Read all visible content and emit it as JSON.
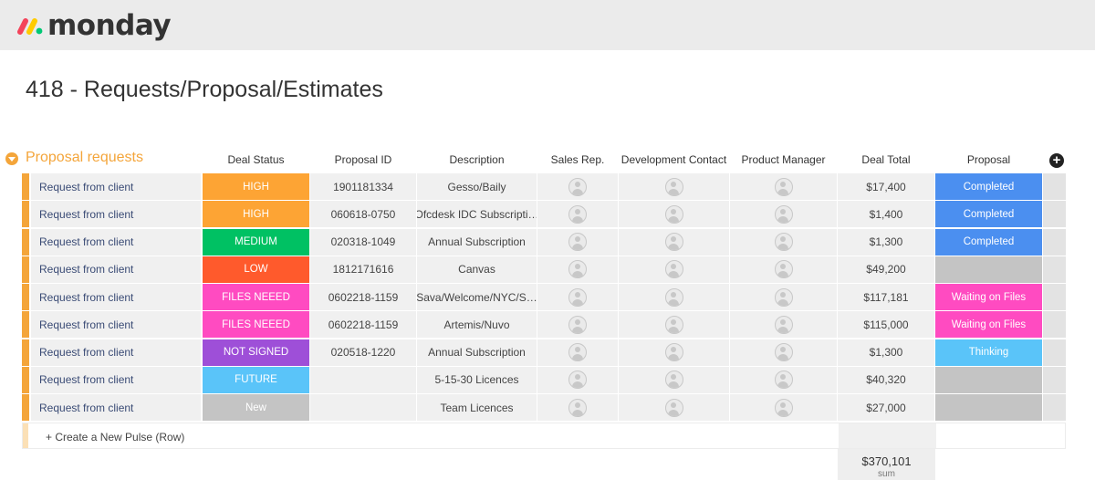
{
  "app": {
    "name": "monday",
    "logo_colors": [
      "#f4435a",
      "#ffcb00",
      "#00c875"
    ]
  },
  "board": {
    "title": "418 - Requests/Proposal/Estimates"
  },
  "group": {
    "title": "Proposal requests",
    "color": "#f4a53a",
    "columns": [
      "Deal Status",
      "Proposal ID",
      "Description",
      "Sales Rep.",
      "Development Contact",
      "Product Manager",
      "Deal Total",
      "Proposal"
    ],
    "rows": [
      {
        "name": "Request from client",
        "status": "HIGH",
        "status_color": "#fda434",
        "proposal_id": "1901181334",
        "description": "Gesso/Baily",
        "deal_total": "$17,400",
        "proposal": "Completed",
        "proposal_color": "#4b8ff0"
      },
      {
        "name": "Request from client",
        "status": "HIGH",
        "status_color": "#fda434",
        "proposal_id": "060618-0750",
        "description": "Ofcdesk IDC Subscripti…",
        "deal_total": "$1,400",
        "proposal": "Completed",
        "proposal_color": "#4b8ff0"
      },
      {
        "name": "Request from client",
        "status": "MEDIUM",
        "status_color": "#00c163",
        "proposal_id": "020318-1049",
        "description": "Annual Subscription",
        "deal_total": "$1,300",
        "proposal": "Completed",
        "proposal_color": "#4b8ff0"
      },
      {
        "name": "Request from client",
        "status": "LOW",
        "status_color": "#ff5a2c",
        "proposal_id": "1812171616",
        "description": "Canvas",
        "deal_total": "$49,200",
        "proposal": "",
        "proposal_color": "#c4c4c4"
      },
      {
        "name": "Request from client",
        "status": "FILES NEEED",
        "status_color": "#ff4bc1",
        "proposal_id": "0602218-1159",
        "description": "Sava/Welcome/NYC/S…",
        "deal_total": "$117,181",
        "proposal": "Waiting on Files",
        "proposal_color": "#ff4bc1"
      },
      {
        "name": "Request from client",
        "status": "FILES NEEED",
        "status_color": "#ff4bc1",
        "proposal_id": "0602218-1159",
        "description": "Artemis/Nuvo",
        "deal_total": "$115,000",
        "proposal": "Waiting on Files",
        "proposal_color": "#ff4bc1"
      },
      {
        "name": "Request from client",
        "status": "NOT SIGNED",
        "status_color": "#9e4fd8",
        "proposal_id": "020518-1220",
        "description": "Annual Subscription",
        "deal_total": "$1,300",
        "proposal": "Thinking",
        "proposal_color": "#5ac4f9"
      },
      {
        "name": "Request from client",
        "status": "FUTURE",
        "status_color": "#5ac4f9",
        "proposal_id": "",
        "description": "5-15-30 Licences",
        "deal_total": "$40,320",
        "proposal": "",
        "proposal_color": "#c4c4c4"
      },
      {
        "name": "Request from client",
        "status": "New",
        "status_color": "#c4c4c4",
        "proposal_id": "",
        "description": "Team Licences",
        "deal_total": "$27,000",
        "proposal": "",
        "proposal_color": "#c4c4c4"
      }
    ],
    "new_row_label": "+ Create a New Pulse (Row)",
    "sum_value": "$370,101",
    "sum_label": "sum"
  }
}
